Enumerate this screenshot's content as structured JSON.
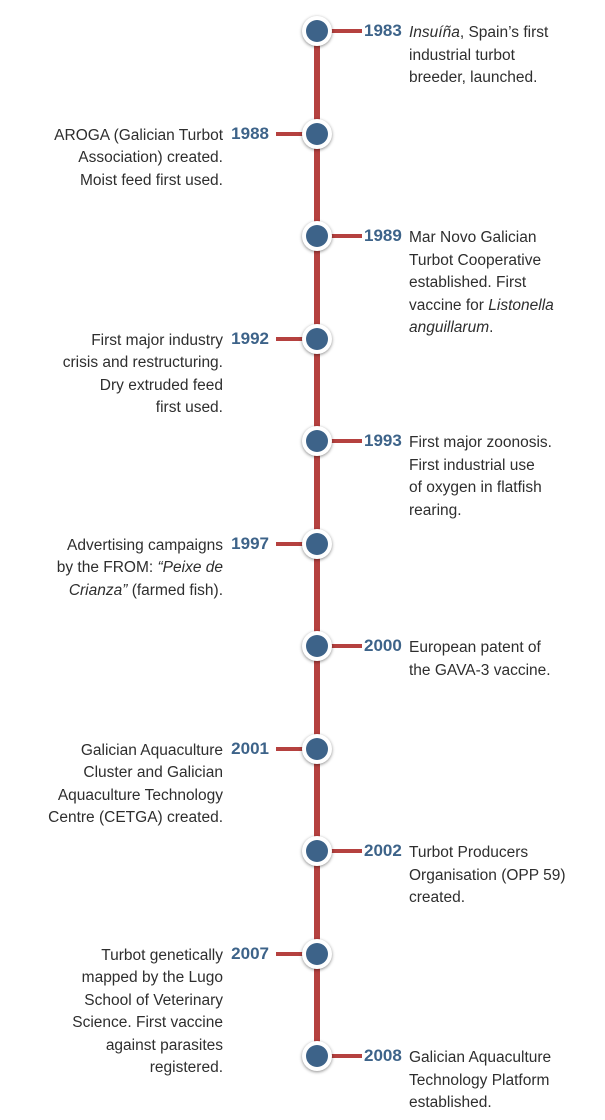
{
  "events": [
    {
      "year": "1983",
      "side": "right",
      "lines": [
        [
          {
            "t": "Insuíña",
            "i": true
          },
          {
            "t": ", Spain’s first"
          }
        ],
        [
          {
            "t": "industrial turbot"
          }
        ],
        [
          {
            "t": "breeder, launched."
          }
        ]
      ]
    },
    {
      "year": "1988",
      "side": "left",
      "lines": [
        [
          {
            "t": "AROGA (Galician Turbot"
          }
        ],
        [
          {
            "t": "Association) created."
          }
        ],
        [
          {
            "t": "Moist feed first used."
          }
        ]
      ]
    },
    {
      "year": "1989",
      "side": "right",
      "lines": [
        [
          {
            "t": "Mar Novo Galician"
          }
        ],
        [
          {
            "t": "Turbot Cooperative"
          }
        ],
        [
          {
            "t": "established. First"
          }
        ],
        [
          {
            "t": "vaccine for "
          },
          {
            "t": "Listonella",
            "i": true
          }
        ],
        [
          {
            "t": "anguillarum",
            "i": true
          },
          {
            "t": "."
          }
        ]
      ]
    },
    {
      "year": "1992",
      "side": "left",
      "lines": [
        [
          {
            "t": "First major industry"
          }
        ],
        [
          {
            "t": "crisis and restructuring."
          }
        ],
        [
          {
            "t": "Dry extruded feed"
          }
        ],
        [
          {
            "t": "first used."
          }
        ]
      ]
    },
    {
      "year": "1993",
      "side": "right",
      "lines": [
        [
          {
            "t": "First major zoonosis."
          }
        ],
        [
          {
            "t": "First industrial use"
          }
        ],
        [
          {
            "t": "of oxygen in flatfish"
          }
        ],
        [
          {
            "t": "rearing."
          }
        ]
      ]
    },
    {
      "year": "1997",
      "side": "left",
      "lines": [
        [
          {
            "t": "Advertising campaigns"
          }
        ],
        [
          {
            "t": "by the FROM: "
          },
          {
            "t": "“Peixe de",
            "i": true
          }
        ],
        [
          {
            "t": "Crianza”",
            "i": true
          },
          {
            "t": " (farmed fish)."
          }
        ]
      ]
    },
    {
      "year": "2000",
      "side": "right",
      "lines": [
        [
          {
            "t": "European patent of"
          }
        ],
        [
          {
            "t": "the GAVA-3 vaccine."
          }
        ]
      ]
    },
    {
      "year": "2001",
      "side": "left",
      "lines": [
        [
          {
            "t": "Galician Aquaculture"
          }
        ],
        [
          {
            "t": "Cluster and Galician"
          }
        ],
        [
          {
            "t": "Aquaculture Technology"
          }
        ],
        [
          {
            "t": "Centre (CETGA) created."
          }
        ]
      ]
    },
    {
      "year": "2002",
      "side": "right",
      "lines": [
        [
          {
            "t": "Turbot Producers"
          }
        ],
        [
          {
            "t": "Organisation (OPP 59)"
          }
        ],
        [
          {
            "t": "created."
          }
        ]
      ]
    },
    {
      "year": "2007",
      "side": "left",
      "lines": [
        [
          {
            "t": "Turbot genetically"
          }
        ],
        [
          {
            "t": "mapped by the Lugo"
          }
        ],
        [
          {
            "t": "School of Veterinary"
          }
        ],
        [
          {
            "t": "Science. First vaccine"
          }
        ],
        [
          {
            "t": "against parasites"
          }
        ],
        [
          {
            "t": "registered."
          }
        ]
      ]
    },
    {
      "year": "2008",
      "side": "right",
      "lines": [
        [
          {
            "t": "Galician Aquaculture"
          }
        ],
        [
          {
            "t": "Technology Platform"
          }
        ],
        [
          {
            "t": "established."
          }
        ]
      ]
    }
  ],
  "colors": {
    "spine": "#b5413f",
    "node": "#3d6389",
    "year": "#3d6389",
    "text": "#2e2e2e"
  }
}
